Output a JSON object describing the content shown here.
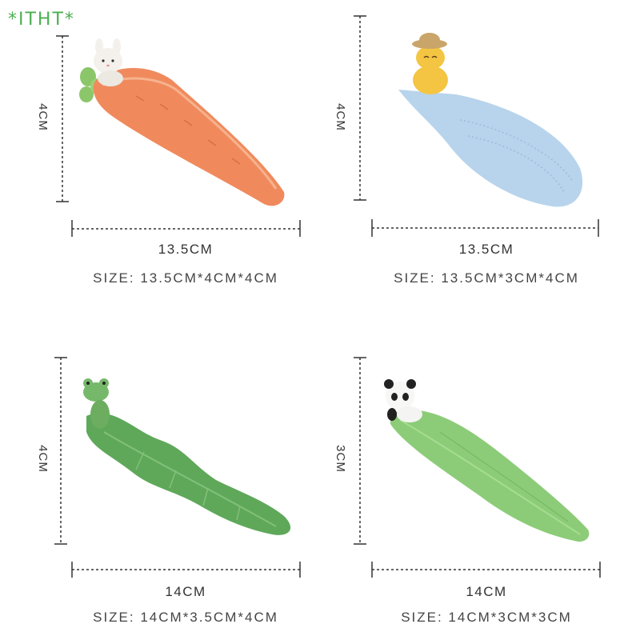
{
  "watermark": "*ITHT*",
  "panels": [
    {
      "product": "carrot-dish-rabbit",
      "height_label": "4CM",
      "length_label": "13.5CM",
      "size_label": "SIZE:  13.5CM*4CM*4CM"
    },
    {
      "product": "fish-dish-cat",
      "height_label": "4CM",
      "length_label": "13.5CM",
      "size_label": "SIZE:  13.5CM*3CM*4CM"
    },
    {
      "product": "leaf-dish-frog",
      "height_label": "4CM",
      "length_label": "14CM",
      "size_label": "SIZE:  14CM*3.5CM*4CM"
    },
    {
      "product": "leaf-dish-panda",
      "height_label": "3CM",
      "length_label": "14CM",
      "size_label": "SIZE:  14CM*3CM*3CM"
    }
  ],
  "colors": {
    "watermark": "#4caf50",
    "carrot": "#f08a5d",
    "fish": "#b8d4ec",
    "leaf_frog": "#5fa85a",
    "leaf_panda": "#8ccc78",
    "dash_lines": "#333333"
  }
}
